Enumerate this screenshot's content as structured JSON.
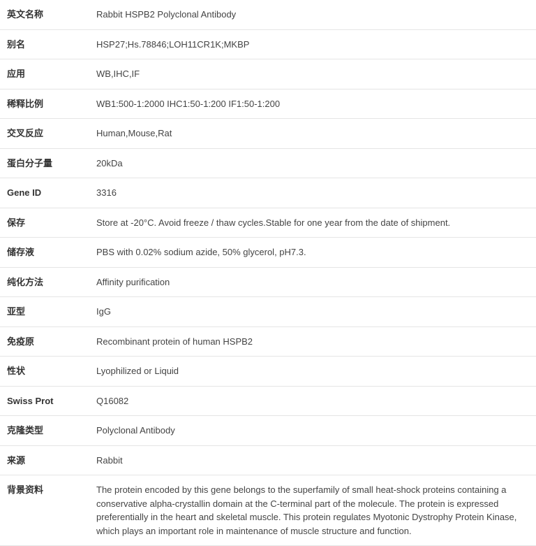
{
  "rows": [
    {
      "label": "英文名称",
      "value": "Rabbit HSPB2 Polyclonal Antibody"
    },
    {
      "label": "别名",
      "value": "HSP27;Hs.78846;LOH11CR1K;MKBP"
    },
    {
      "label": "应用",
      "value": "WB,IHC,IF"
    },
    {
      "label": "稀释比例",
      "value": "WB1:500-1:2000 IHC1:50-1:200 IF1:50-1:200"
    },
    {
      "label": "交叉反应",
      "value": "Human,Mouse,Rat"
    },
    {
      "label": "蛋白分子量",
      "value": "20kDa"
    },
    {
      "label": "Gene ID",
      "value": "3316"
    },
    {
      "label": "保存",
      "value": "Store at -20°C. Avoid freeze / thaw cycles.Stable for one year from the date of shipment."
    },
    {
      "label": "储存液",
      "value": "PBS with 0.02% sodium azide, 50% glycerol, pH7.3."
    },
    {
      "label": "纯化方法",
      "value": "Affinity purification"
    },
    {
      "label": "亚型",
      "value": "IgG"
    },
    {
      "label": "免疫原",
      "value": "Recombinant protein of human HSPB2"
    },
    {
      "label": "性状",
      "value": "Lyophilized or Liquid"
    },
    {
      "label": "Swiss Prot",
      "value": "Q16082"
    },
    {
      "label": "克隆类型",
      "value": "Polyclonal Antibody"
    },
    {
      "label": "来源",
      "value": "Rabbit"
    },
    {
      "label": "背景资料",
      "value": "The protein encoded by this gene belongs to the superfamily of small heat-shock proteins containing a conservative alpha-crystallin domain at the C-terminal part of the molecule. The protein is expressed preferentially in the heart and skeletal muscle. This protein regulates Myotonic Dystrophy Protein Kinase, which plays an important role in maintenance of muscle structure and function."
    }
  ],
  "styles": {
    "border_color": "#e5e5e5",
    "text_color": "#333333",
    "value_color": "#444444",
    "background_color": "#ffffff",
    "font_size": 13,
    "label_width": 128,
    "row_padding_vertical": 11,
    "row_padding_horizontal": 10
  }
}
